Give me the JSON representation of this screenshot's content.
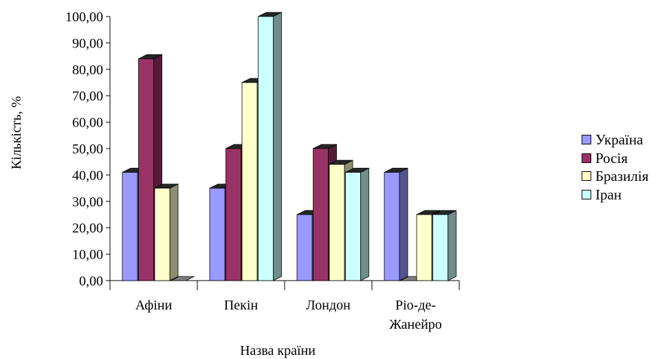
{
  "chart_data": {
    "type": "bar",
    "style": "3d-clustered",
    "categories": [
      "Афіни",
      "Пекін",
      "Лондон",
      "Ріо-де-Жанейро"
    ],
    "category_lines": [
      [
        "Афіни"
      ],
      [
        "Пекін"
      ],
      [
        "Лондон"
      ],
      [
        "Ріо-де-",
        "Жанейро"
      ]
    ],
    "series": [
      {
        "name": "Україна",
        "values": [
          41,
          35,
          25,
          41
        ],
        "color": "#9999ff"
      },
      {
        "name": "Росія",
        "values": [
          84,
          50,
          50,
          0
        ],
        "color": "#993366"
      },
      {
        "name": "Бразилія",
        "values": [
          35,
          75,
          44,
          25
        ],
        "color": "#ffffcc"
      },
      {
        "name": "Іран",
        "values": [
          0,
          100,
          41,
          25
        ],
        "color": "#ccffff"
      }
    ],
    "ylabel": "Кількість, %",
    "xlabel": "Назва країни",
    "ylim": [
      0,
      100
    ],
    "yticks": [
      "0,00",
      "10,00",
      "20,00",
      "30,00",
      "40,00",
      "50,00",
      "60,00",
      "70,00",
      "80,00",
      "90,00",
      "100,00"
    ],
    "grid": false,
    "legend_position": "right"
  }
}
